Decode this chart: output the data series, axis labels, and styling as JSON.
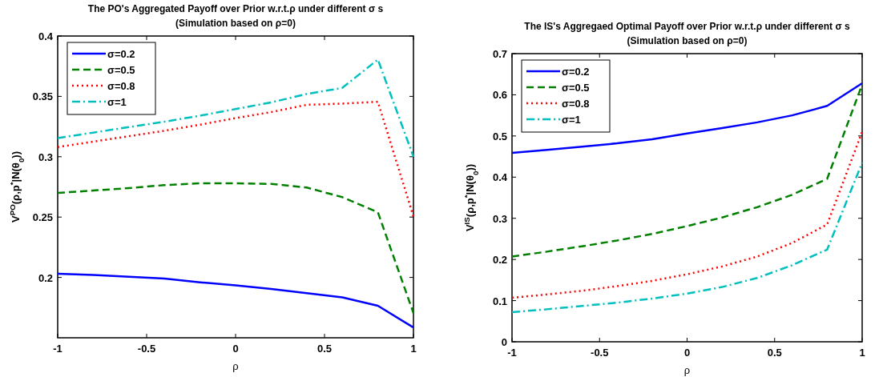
{
  "chart_data": [
    {
      "type": "line",
      "title": "The PO's Aggregated Payoff over Prior w.r.t.ρ under different σ s",
      "subtitle": "(Simulation based on ρ=0)",
      "xlabel": "ρ",
      "ylabel": "V$^{PO}$(ρ,p$^{*}$|N(θ$_{0}$))",
      "x": [
        -1,
        -0.8,
        -0.6,
        -0.4,
        -0.2,
        0,
        0.2,
        0.4,
        0.6,
        0.8,
        1
      ],
      "xlim": [
        -1,
        1
      ],
      "xticks": [
        -1,
        -0.5,
        0,
        0.5,
        1
      ],
      "ylim": [
        0.15,
        0.4
      ],
      "yticks": [
        0.2,
        0.25,
        0.3,
        0.35,
        0.4
      ],
      "legend": "top left",
      "grid": false,
      "series": [
        {
          "name": "σ=0.2",
          "color": "#0000ff",
          "line_style": "solid",
          "values": [
            0.203,
            0.202,
            0.2005,
            0.199,
            0.196,
            0.1935,
            0.1905,
            0.187,
            0.1835,
            0.1765,
            0.1585
          ]
        },
        {
          "name": "σ=0.5",
          "color": "#008000",
          "line_style": "dashed",
          "values": [
            0.27,
            0.272,
            0.274,
            0.2765,
            0.278,
            0.278,
            0.2775,
            0.2745,
            0.2665,
            0.254,
            0.1705
          ]
        },
        {
          "name": "σ=0.8",
          "color": "#ff0000",
          "line_style": "dotted",
          "values": [
            0.308,
            0.3125,
            0.317,
            0.3215,
            0.3265,
            0.332,
            0.337,
            0.343,
            0.344,
            0.3455,
            0.2505
          ]
        },
        {
          "name": "σ=1",
          "color": "#00bfbf",
          "line_style": "dashdot",
          "values": [
            0.3155,
            0.32,
            0.3245,
            0.329,
            0.334,
            0.3395,
            0.345,
            0.352,
            0.357,
            0.3805,
            0.3
          ]
        }
      ]
    },
    {
      "type": "line",
      "title": "The IS's Aggregaed Optimal Payoff over Prior w.r.t.ρ under different σ s",
      "subtitle": "(Simulation based on ρ=0)",
      "xlabel": "ρ",
      "ylabel": "V$^{IS}$(ρ,p$^{*}$|N(θ$_{0}$))",
      "x": [
        -1,
        -0.8,
        -0.6,
        -0.4,
        -0.2,
        0,
        0.2,
        0.4,
        0.6,
        0.8,
        1
      ],
      "xlim": [
        -1,
        1
      ],
      "xticks": [
        -1,
        -0.5,
        0,
        0.5,
        1
      ],
      "ylim": [
        0,
        0.7
      ],
      "yticks": [
        0,
        0.1,
        0.2,
        0.3,
        0.4,
        0.5,
        0.6,
        0.7
      ],
      "legend": "top left",
      "grid": false,
      "series": [
        {
          "name": "σ=0.2",
          "color": "#0000ff",
          "line_style": "solid",
          "values": [
            0.459,
            0.466,
            0.474,
            0.482,
            0.492,
            0.506,
            0.519,
            0.533,
            0.55,
            0.573,
            0.628
          ]
        },
        {
          "name": "σ=0.5",
          "color": "#008000",
          "line_style": "dashed",
          "values": [
            0.207,
            0.219,
            0.232,
            0.246,
            0.262,
            0.281,
            0.302,
            0.327,
            0.357,
            0.396,
            0.625
          ]
        },
        {
          "name": "σ=0.8",
          "color": "#ff0000",
          "line_style": "dotted",
          "values": [
            0.107,
            0.115,
            0.124,
            0.135,
            0.148,
            0.164,
            0.183,
            0.207,
            0.24,
            0.285,
            0.51
          ]
        },
        {
          "name": "σ=1",
          "color": "#00bfbf",
          "line_style": "dashdot",
          "values": [
            0.072,
            0.079,
            0.087,
            0.095,
            0.105,
            0.117,
            0.133,
            0.155,
            0.186,
            0.224,
            0.435
          ]
        }
      ]
    }
  ]
}
